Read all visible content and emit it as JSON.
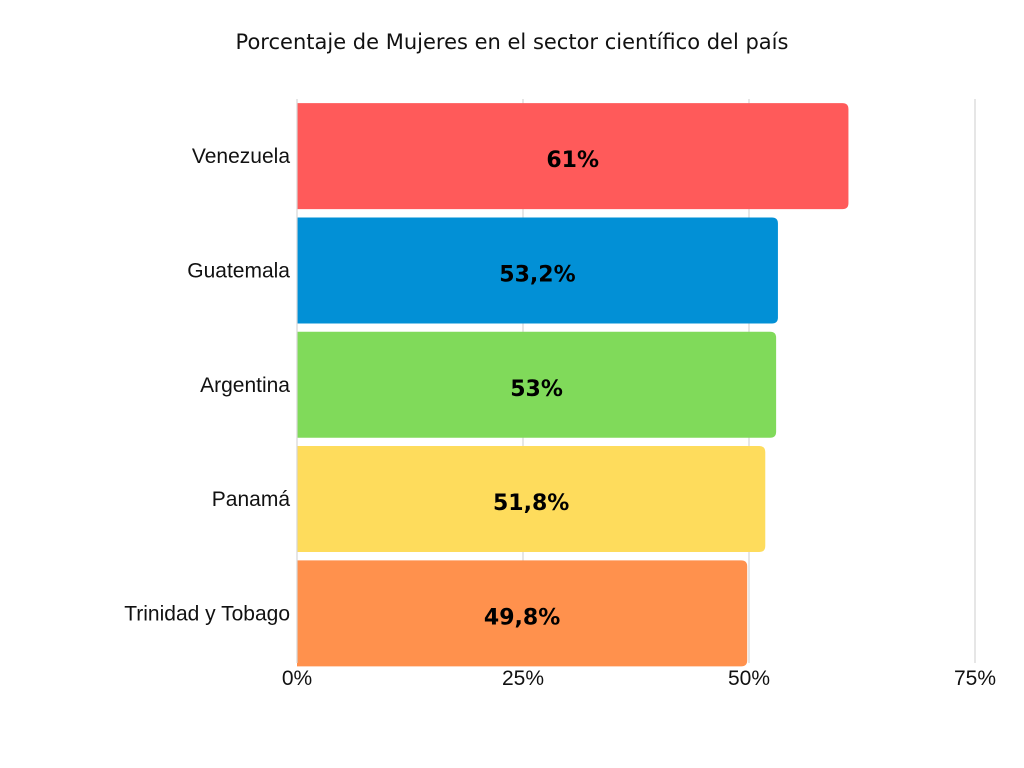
{
  "chart_data": {
    "type": "bar",
    "orientation": "horizontal",
    "title": "Porcentaje de Mujeres en el sector científico del país",
    "categories": [
      "Venezuela",
      "Guatemala",
      "Argentina",
      "Panamá",
      "Trinidad y Tobago"
    ],
    "values": [
      61,
      53.2,
      53,
      51.8,
      49.8
    ],
    "value_labels": [
      "61%",
      "53,2%",
      "53%",
      "51,8%",
      "49,8%"
    ],
    "colors": [
      "#ff5a5a",
      "#0290d6",
      "#80da5a",
      "#fedc5c",
      "#ff914d"
    ],
    "xlim": [
      0,
      75
    ],
    "xticks": [
      0,
      25,
      50,
      75
    ],
    "xtick_labels": [
      "0%",
      "25%",
      "50%",
      "75%"
    ],
    "xlabel": "",
    "ylabel": "",
    "grid": true
  }
}
